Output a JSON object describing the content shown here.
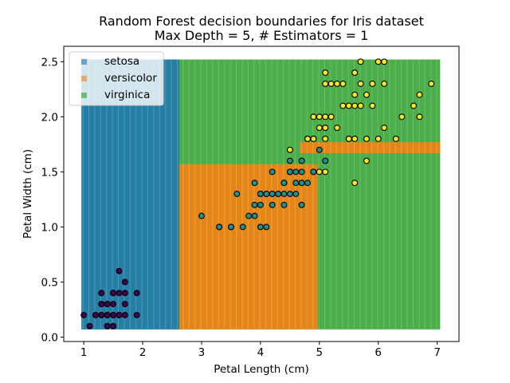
{
  "chart_data": {
    "type": "scatter",
    "title": "Random Forest decision boundaries for Iris dataset",
    "subtitle": "Max Depth = 5, # Estimators = 1",
    "xlabel": "Petal Length (cm)",
    "ylabel": "Petal Width (cm)",
    "xlim": [
      0.66,
      7.37
    ],
    "ylim": [
      -0.04,
      2.64
    ],
    "xticks": [
      "1",
      "2",
      "3",
      "4",
      "5",
      "6",
      "7"
    ],
    "yticks": [
      "0.0",
      "0.5",
      "1.0",
      "1.5",
      "2.0",
      "2.5"
    ],
    "grid": false,
    "legend": {
      "placement": "upper-left",
      "entries": [
        "setosa",
        "versicolor",
        "virginica"
      ]
    },
    "region_colors": {
      "setosa": "#1f77b4",
      "versicolor": "#ff7f0e",
      "virginica": "#2ca02c"
    },
    "regions": [
      {
        "class": "virginica",
        "x": [
          0.96,
          7.05
        ],
        "y": [
          0.07,
          2.52
        ]
      },
      {
        "class": "setosa",
        "x": [
          0.96,
          2.62
        ],
        "y": [
          0.07,
          2.52
        ]
      },
      {
        "class": "versicolor",
        "x": [
          2.62,
          4.97
        ],
        "y": [
          0.07,
          1.57
        ]
      },
      {
        "class": "versicolor",
        "x": [
          4.67,
          7.05
        ],
        "y": [
          1.67,
          1.77
        ]
      }
    ],
    "series": [
      {
        "name": "setosa",
        "color": "#440154",
        "points": [
          [
            1.4,
            0.2
          ],
          [
            1.4,
            0.2
          ],
          [
            1.3,
            0.2
          ],
          [
            1.5,
            0.2
          ],
          [
            1.4,
            0.2
          ],
          [
            1.7,
            0.4
          ],
          [
            1.4,
            0.3
          ],
          [
            1.5,
            0.2
          ],
          [
            1.4,
            0.2
          ],
          [
            1.5,
            0.1
          ],
          [
            1.5,
            0.2
          ],
          [
            1.6,
            0.2
          ],
          [
            1.4,
            0.1
          ],
          [
            1.1,
            0.1
          ],
          [
            1.2,
            0.2
          ],
          [
            1.5,
            0.4
          ],
          [
            1.3,
            0.4
          ],
          [
            1.4,
            0.3
          ],
          [
            1.7,
            0.3
          ],
          [
            1.5,
            0.3
          ],
          [
            1.7,
            0.2
          ],
          [
            1.5,
            0.4
          ],
          [
            1.0,
            0.2
          ],
          [
            1.7,
            0.5
          ],
          [
            1.9,
            0.2
          ],
          [
            1.6,
            0.2
          ],
          [
            1.6,
            0.4
          ],
          [
            1.5,
            0.2
          ],
          [
            1.4,
            0.2
          ],
          [
            1.6,
            0.2
          ],
          [
            1.6,
            0.2
          ],
          [
            1.5,
            0.4
          ],
          [
            1.5,
            0.1
          ],
          [
            1.4,
            0.2
          ],
          [
            1.5,
            0.2
          ],
          [
            1.2,
            0.2
          ],
          [
            1.3,
            0.2
          ],
          [
            1.4,
            0.1
          ],
          [
            1.3,
            0.2
          ],
          [
            1.5,
            0.2
          ],
          [
            1.3,
            0.3
          ],
          [
            1.3,
            0.3
          ],
          [
            1.3,
            0.2
          ],
          [
            1.6,
            0.6
          ],
          [
            1.9,
            0.4
          ],
          [
            1.4,
            0.3
          ],
          [
            1.6,
            0.2
          ],
          [
            1.4,
            0.2
          ],
          [
            1.5,
            0.2
          ],
          [
            1.4,
            0.2
          ]
        ]
      },
      {
        "name": "versicolor",
        "color": "#21918c",
        "points": [
          [
            4.7,
            1.4
          ],
          [
            4.5,
            1.5
          ],
          [
            4.9,
            1.5
          ],
          [
            4.0,
            1.3
          ],
          [
            4.6,
            1.5
          ],
          [
            4.5,
            1.3
          ],
          [
            4.7,
            1.6
          ],
          [
            3.3,
            1.0
          ],
          [
            4.6,
            1.3
          ],
          [
            3.9,
            1.4
          ],
          [
            3.5,
            1.0
          ],
          [
            4.2,
            1.5
          ],
          [
            4.0,
            1.0
          ],
          [
            4.7,
            1.4
          ],
          [
            3.6,
            1.3
          ],
          [
            4.4,
            1.4
          ],
          [
            4.5,
            1.5
          ],
          [
            4.1,
            1.0
          ],
          [
            4.5,
            1.5
          ],
          [
            3.9,
            1.1
          ],
          [
            4.8,
            1.8
          ],
          [
            4.0,
            1.3
          ],
          [
            4.9,
            1.5
          ],
          [
            4.7,
            1.2
          ],
          [
            4.3,
            1.3
          ],
          [
            4.4,
            1.4
          ],
          [
            4.8,
            1.4
          ],
          [
            5.0,
            1.7
          ],
          [
            4.5,
            1.5
          ],
          [
            3.5,
            1.0
          ],
          [
            3.8,
            1.1
          ],
          [
            3.7,
            1.0
          ],
          [
            3.9,
            1.2
          ],
          [
            5.1,
            1.6
          ],
          [
            4.5,
            1.5
          ],
          [
            4.5,
            1.6
          ],
          [
            4.7,
            1.5
          ],
          [
            4.4,
            1.3
          ],
          [
            4.1,
            1.3
          ],
          [
            4.0,
            1.3
          ],
          [
            4.4,
            1.2
          ],
          [
            4.6,
            1.4
          ],
          [
            4.0,
            1.2
          ],
          [
            3.3,
            1.0
          ],
          [
            4.2,
            1.3
          ],
          [
            4.2,
            1.2
          ],
          [
            4.2,
            1.3
          ],
          [
            4.3,
            1.3
          ],
          [
            3.0,
            1.1
          ],
          [
            4.1,
            1.3
          ]
        ]
      },
      {
        "name": "virginica",
        "color": "#fde725",
        "points": [
          [
            6.0,
            2.5
          ],
          [
            5.1,
            1.9
          ],
          [
            5.9,
            2.1
          ],
          [
            5.6,
            1.8
          ],
          [
            5.8,
            2.2
          ],
          [
            6.6,
            2.1
          ],
          [
            4.5,
            1.7
          ],
          [
            6.3,
            1.8
          ],
          [
            5.8,
            1.8
          ],
          [
            6.1,
            2.5
          ],
          [
            5.1,
            2.0
          ],
          [
            5.3,
            1.9
          ],
          [
            5.5,
            2.1
          ],
          [
            5.0,
            2.0
          ],
          [
            5.1,
            2.4
          ],
          [
            5.3,
            2.3
          ],
          [
            5.5,
            1.8
          ],
          [
            6.7,
            2.2
          ],
          [
            6.9,
            2.3
          ],
          [
            5.0,
            1.5
          ],
          [
            5.7,
            2.3
          ],
          [
            4.9,
            2.0
          ],
          [
            6.7,
            2.0
          ],
          [
            4.9,
            1.8
          ],
          [
            5.7,
            2.1
          ],
          [
            6.0,
            1.8
          ],
          [
            4.8,
            1.8
          ],
          [
            4.9,
            1.8
          ],
          [
            5.6,
            2.1
          ],
          [
            5.8,
            1.6
          ],
          [
            6.1,
            1.9
          ],
          [
            6.4,
            2.0
          ],
          [
            5.6,
            2.2
          ],
          [
            5.1,
            1.5
          ],
          [
            5.6,
            1.4
          ],
          [
            6.1,
            2.3
          ],
          [
            5.6,
            2.4
          ],
          [
            5.5,
            1.8
          ],
          [
            4.8,
            1.8
          ],
          [
            5.4,
            2.1
          ],
          [
            5.6,
            2.4
          ],
          [
            5.1,
            2.3
          ],
          [
            5.1,
            1.9
          ],
          [
            5.9,
            2.3
          ],
          [
            5.7,
            2.5
          ],
          [
            5.2,
            2.3
          ],
          [
            5.0,
            1.9
          ],
          [
            5.2,
            2.0
          ],
          [
            5.4,
            2.3
          ],
          [
            5.1,
            1.8
          ]
        ]
      }
    ]
  }
}
